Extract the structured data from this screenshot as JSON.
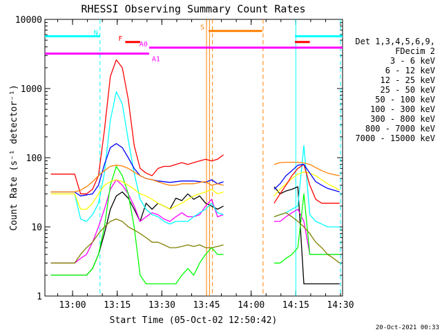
{
  "chart_data": {
    "type": "line",
    "title": "RHESSI Observing Summary Count Rates",
    "xlabel": "Start Time (05-Oct-02 12:50:42)",
    "ylabel": "Count Rate (s⁻¹ detector⁻¹)",
    "x_units": "minutes after 12:50:42 UT",
    "xlim": [
      0,
      100
    ],
    "ylim": [
      1,
      10000
    ],
    "yscale": "log",
    "x_ticks": [
      {
        "x": 9.3,
        "label": "13:00"
      },
      {
        "x": 24.3,
        "label": "13:15"
      },
      {
        "x": 39.3,
        "label": "13:30"
      },
      {
        "x": 54.3,
        "label": "13:45"
      },
      {
        "x": 69.3,
        "label": "14:00"
      },
      {
        "x": 84.3,
        "label": "14:15"
      },
      {
        "x": 99.3,
        "label": "14:30"
      }
    ],
    "y_ticks": [
      {
        "y": 1,
        "label": "1"
      },
      {
        "y": 10,
        "label": "10"
      },
      {
        "y": 100,
        "label": "100"
      },
      {
        "y": 1000,
        "label": "1000"
      },
      {
        "y": 10000,
        "label": "10000"
      }
    ],
    "legend": {
      "placement": "right",
      "header": [
        "Det 1,3,4,5,6,9,",
        "FDecim 2"
      ]
    },
    "series": [
      {
        "name": "3 - 6 keV",
        "color": "#000000",
        "x": [
          2,
          5,
          8,
          10,
          12,
          14,
          16,
          18,
          20,
          22,
          24,
          26,
          28,
          30,
          32,
          34,
          36,
          38,
          40,
          42,
          44,
          46,
          48,
          50,
          52,
          54,
          56,
          58,
          60
        ],
        "y": [
          2,
          2,
          2,
          2,
          2,
          2,
          2.5,
          4,
          8,
          18,
          28,
          32,
          26,
          18,
          12,
          22,
          18,
          22,
          20,
          18,
          26,
          24,
          30,
          25,
          28,
          22,
          20,
          18,
          20
        ]
      },
      {
        "name": "6 - 12 keV",
        "color": "#ff00ff",
        "x": [
          2,
          10,
          12,
          14,
          16,
          18,
          20,
          22,
          24,
          26,
          28,
          30,
          32,
          34,
          36,
          38,
          40,
          42,
          44,
          46,
          48,
          50,
          52,
          54,
          56,
          58,
          60
        ],
        "y": [
          3,
          3,
          3.5,
          4,
          6,
          10,
          18,
          35,
          48,
          40,
          30,
          20,
          12,
          14,
          16,
          15,
          13,
          12,
          14,
          16,
          14,
          14,
          15,
          20,
          25,
          14,
          15
        ]
      },
      {
        "name": "12 - 25 keV",
        "color": "#00ff00",
        "x": [
          2,
          10,
          12,
          14,
          16,
          18,
          20,
          22,
          24,
          26,
          28,
          30,
          32,
          34,
          36,
          38,
          40,
          42,
          44,
          46,
          48,
          50,
          52,
          54,
          56,
          58,
          60
        ],
        "y": [
          2,
          2,
          2,
          2,
          2.5,
          4,
          10,
          40,
          75,
          55,
          30,
          10,
          2,
          1.5,
          1.5,
          1.5,
          1.5,
          1.5,
          1.5,
          2,
          2.5,
          2,
          3,
          4,
          5,
          4,
          4
        ]
      },
      {
        "name": "25 - 50 keV",
        "color": "#00ffff",
        "x": [
          2,
          10,
          12,
          14,
          16,
          18,
          20,
          22,
          24,
          26,
          28,
          30,
          32,
          34,
          36,
          38,
          40,
          42,
          44,
          46,
          48,
          50,
          52,
          54,
          56,
          58,
          60
        ],
        "y": [
          30,
          30,
          13,
          12,
          15,
          22,
          60,
          350,
          900,
          600,
          180,
          60,
          25,
          18,
          15,
          14,
          12,
          11,
          12,
          12,
          12,
          14,
          16,
          18,
          22,
          16,
          15
        ]
      },
      {
        "name": "50 - 100 keV",
        "color": "#ffff00",
        "x": [
          2,
          10,
          12,
          14,
          16,
          18,
          20,
          22,
          24,
          26,
          28,
          30,
          32,
          34,
          36,
          38,
          40,
          42,
          44,
          46,
          48,
          50,
          52,
          54,
          56,
          58,
          60
        ],
        "y": [
          30,
          30,
          18,
          18,
          22,
          30,
          40,
          45,
          48,
          45,
          40,
          35,
          30,
          28,
          25,
          22,
          20,
          18,
          20,
          22,
          25,
          28,
          30,
          32,
          35,
          30,
          32
        ]
      },
      {
        "name": "100 - 300 keV",
        "color": "#ff0000",
        "x": [
          2,
          10,
          12,
          14,
          16,
          18,
          20,
          22,
          24,
          26,
          28,
          30,
          32,
          34,
          36,
          38,
          40,
          42,
          44,
          46,
          48,
          50,
          52,
          54,
          56,
          58,
          60
        ],
        "y": [
          58,
          58,
          30,
          30,
          35,
          55,
          250,
          1500,
          2600,
          2000,
          700,
          150,
          70,
          60,
          55,
          70,
          75,
          75,
          80,
          85,
          80,
          85,
          90,
          95,
          90,
          95,
          110
        ]
      },
      {
        "name": "300 - 800 keV",
        "color": "#0000ff",
        "x": [
          2,
          10,
          12,
          14,
          16,
          18,
          20,
          22,
          24,
          26,
          28,
          30,
          32,
          34,
          36,
          38,
          40,
          42,
          44,
          46,
          48,
          50,
          52,
          54,
          56,
          58,
          60
        ],
        "y": [
          32,
          32,
          28,
          29,
          30,
          40,
          80,
          140,
          160,
          140,
          100,
          70,
          55,
          50,
          48,
          46,
          45,
          44,
          45,
          46,
          46,
          46,
          45,
          44,
          48,
          42,
          45
        ]
      },
      {
        "name": "800 - 7000 keV",
        "color": "#ff8000",
        "x": [
          2,
          10,
          12,
          14,
          16,
          18,
          20,
          22,
          24,
          26,
          28,
          30,
          32,
          34,
          36,
          38,
          40,
          42,
          44,
          46,
          48,
          50,
          52,
          54,
          56,
          58,
          60
        ],
        "y": [
          32,
          32,
          34,
          38,
          45,
          55,
          65,
          75,
          78,
          76,
          70,
          62,
          55,
          50,
          48,
          45,
          42,
          40,
          40,
          42,
          42,
          42,
          44,
          45,
          40,
          42,
          40
        ]
      },
      {
        "name": "7000 - 15000 keV",
        "color": "#808000",
        "x": [
          2,
          10,
          12,
          14,
          16,
          18,
          20,
          22,
          24,
          26,
          28,
          30,
          32,
          34,
          36,
          38,
          40,
          42,
          44,
          46,
          48,
          50,
          52,
          54,
          56,
          58,
          60
        ],
        "y": [
          3,
          3,
          4,
          5,
          6,
          8,
          10,
          12,
          13,
          12,
          10,
          9,
          8,
          7,
          6,
          6,
          5.5,
          5,
          5,
          5.2,
          5.5,
          5.2,
          5.5,
          5,
          5,
          5.2,
          5.5
        ]
      }
    ],
    "series_after_gap": [
      {
        "name": "3 - 6 keV",
        "color": "#000000",
        "x": [
          77,
          79,
          81,
          83,
          85,
          87,
          89,
          91,
          93,
          95,
          97,
          99
        ],
        "y": [
          38,
          30,
          33,
          35,
          38,
          1.5,
          1.5,
          1.5,
          1.5,
          1.5,
          1.5,
          1.5
        ]
      },
      {
        "name": "6 - 12 keV",
        "color": "#ff00ff",
        "x": [
          77,
          79,
          81,
          83,
          85,
          87,
          89,
          91,
          93,
          95,
          97,
          99
        ],
        "y": [
          12,
          12,
          14,
          16,
          18,
          12,
          4,
          4,
          4,
          4,
          4,
          4
        ]
      },
      {
        "name": "12 - 25 keV",
        "color": "#00ff00",
        "x": [
          77,
          79,
          81,
          83,
          85,
          87,
          89,
          91,
          93,
          95,
          97,
          99
        ],
        "y": [
          3,
          3,
          3.5,
          4,
          5,
          30,
          4,
          4,
          4,
          4,
          4,
          4
        ]
      },
      {
        "name": "25 - 50 keV",
        "color": "#00ffff",
        "x": [
          77,
          79,
          81,
          83,
          85,
          87,
          89,
          91,
          93,
          95,
          97,
          99
        ],
        "y": [
          14,
          15,
          16,
          18,
          20,
          150,
          15,
          12,
          11,
          10,
          10,
          10
        ]
      },
      {
        "name": "50 - 100 keV",
        "color": "#ffff00",
        "x": [
          77,
          79,
          81,
          83,
          85,
          87,
          89,
          91,
          93,
          95,
          97,
          99
        ],
        "y": [
          28,
          35,
          42,
          50,
          58,
          62,
          60,
          55,
          48,
          42,
          38,
          34
        ]
      },
      {
        "name": "100 - 300 keV",
        "color": "#ff0000",
        "x": [
          77,
          79,
          81,
          83,
          85,
          87,
          89,
          91,
          93,
          95,
          97,
          99
        ],
        "y": [
          22,
          30,
          40,
          55,
          70,
          80,
          40,
          25,
          22,
          22,
          22,
          22
        ]
      },
      {
        "name": "300 - 800 keV",
        "color": "#0000ff",
        "x": [
          77,
          79,
          81,
          83,
          85,
          87,
          89,
          91,
          93,
          95,
          97,
          99
        ],
        "y": [
          35,
          42,
          55,
          65,
          78,
          80,
          60,
          45,
          40,
          36,
          34,
          32
        ]
      },
      {
        "name": "800 - 7000 keV",
        "color": "#ff8000",
        "x": [
          77,
          79,
          81,
          83,
          85,
          87,
          89,
          91,
          93,
          95,
          97,
          99
        ],
        "y": [
          80,
          85,
          86,
          86,
          86,
          84,
          80,
          72,
          65,
          60,
          57,
          55
        ]
      },
      {
        "name": "7000 - 15000 keV",
        "color": "#808000",
        "x": [
          77,
          79,
          81,
          83,
          85,
          87,
          89,
          91,
          93,
          95,
          97,
          99
        ],
        "y": [
          14,
          15,
          16,
          14,
          12,
          10,
          8,
          6,
          5,
          4,
          3.5,
          3
        ]
      }
    ],
    "flags": [
      {
        "label": "N",
        "color": "#00ffff",
        "y": 5700,
        "segments": [
          [
            0,
            18.5
          ],
          [
            84,
            100
          ]
        ]
      },
      {
        "label": "F",
        "color": "#ff0000",
        "y": 4700,
        "segments": [
          [
            27,
            32
          ],
          [
            84,
            89
          ]
        ]
      },
      {
        "label": "S",
        "color": "#ff8000",
        "y": 6800,
        "segments": [
          [
            55,
            73
          ]
        ]
      },
      {
        "label": "A0",
        "color": "#ff00ff",
        "y": 3900,
        "segments": [
          [
            35,
            100
          ]
        ]
      },
      {
        "label": "A1",
        "color": "#ff00ff",
        "y": 3200,
        "segments": [
          [
            0,
            35
          ]
        ]
      }
    ],
    "vlines": [
      {
        "x": 18.5,
        "color": "#00ffff",
        "style": "dashed"
      },
      {
        "x": 54.3,
        "color": "#ff8000",
        "style": "solid"
      },
      {
        "x": 55.3,
        "color": "#ff8000",
        "style": "solid"
      },
      {
        "x": 56.3,
        "color": "#ff8000",
        "style": "dashed"
      },
      {
        "x": 73.3,
        "color": "#ff8000",
        "style": "dashed"
      },
      {
        "x": 84.3,
        "color": "#00ffff",
        "style": "solid"
      },
      {
        "x": 99.3,
        "color": "#00ffff",
        "style": "dashed"
      }
    ]
  },
  "footer": {
    "timestamp": "20-Oct-2021 00:33"
  }
}
